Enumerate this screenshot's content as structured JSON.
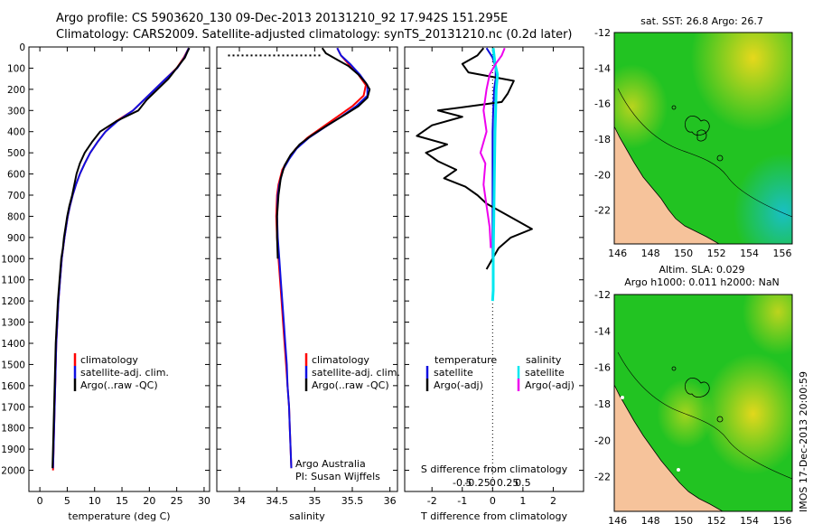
{
  "header": {
    "line1": "Argo profile: CS 5903620_130 09-Dec-2013 20131210_92 17.942S 151.295E",
    "line2": "Climatology: CARS2009. Satellite-adjusted climatology: synTS_20131210.nc (0.2d later)"
  },
  "colors": {
    "climatology": "#ff0000",
    "satellite": "#1010e0",
    "argo": "#000000",
    "sat_salinity": "#00e8f0",
    "argo_salinity": "#ee00ee",
    "land": "#f6c39b",
    "sea_green": "#22c322",
    "sea_yellow": "#e0dc1a",
    "sea_cyan": "#20c8c0"
  },
  "legend_main": {
    "climatology": "climatology",
    "satellite": "satellite-adj. clim.",
    "argo": "Argo(..raw -QC)"
  },
  "legend_diff": {
    "temp_head": "temperature",
    "sal_head": "salinity",
    "temp_sat": "satellite",
    "temp_argo": "Argo(-adj)",
    "sal_sat": "satellite",
    "sal_argo": "Argo(-adj)"
  },
  "credits": {
    "line1": "Argo Australia",
    "line2": "PI: Susan Wijffels"
  },
  "imos_stamp": "IMOS 17-Dec-2013 20:00:59",
  "chart_data": [
    {
      "type": "line",
      "title": "",
      "xlabel": "temperature (deg C)",
      "ylabel": "",
      "xlim": [
        -2,
        31
      ],
      "ylim": [
        0,
        2100
      ],
      "x_ticks": [
        0,
        5,
        10,
        15,
        20,
        25,
        30
      ],
      "y_ticks": [
        0,
        100,
        200,
        300,
        400,
        500,
        600,
        700,
        800,
        900,
        1000,
        1100,
        1200,
        1300,
        1400,
        1500,
        1600,
        1700,
        1800,
        1900,
        2000
      ],
      "series": [
        {
          "name": "climatology",
          "points": [
            [
              27.2,
              5
            ],
            [
              26.3,
              50
            ],
            [
              25,
              100
            ],
            [
              23,
              150
            ],
            [
              21,
              200
            ],
            [
              19,
              250
            ],
            [
              17,
              300
            ],
            [
              14,
              350
            ],
            [
              12,
              400
            ],
            [
              10.5,
              450
            ],
            [
              9.2,
              500
            ],
            [
              8.2,
              550
            ],
            [
              7.3,
              600
            ],
            [
              6.6,
              650
            ],
            [
              6,
              700
            ],
            [
              5.5,
              750
            ],
            [
              5.1,
              800
            ],
            [
              4.8,
              850
            ],
            [
              4.5,
              900
            ],
            [
              4,
              1000
            ],
            [
              3.7,
              1100
            ],
            [
              3.4,
              1200
            ],
            [
              3.2,
              1300
            ],
            [
              3,
              1400
            ],
            [
              2.9,
              1500
            ],
            [
              2.8,
              1600
            ],
            [
              2.7,
              1700
            ],
            [
              2.6,
              1800
            ],
            [
              2.5,
              1900
            ],
            [
              2.4,
              2000
            ]
          ]
        },
        {
          "name": "satellite-adj. clim.",
          "points": [
            [
              27.2,
              5
            ],
            [
              26.4,
              50
            ],
            [
              25.1,
              100
            ],
            [
              23,
              150
            ],
            [
              21,
              200
            ],
            [
              19,
              250
            ],
            [
              17,
              300
            ],
            [
              14.2,
              350
            ],
            [
              12,
              400
            ],
            [
              10.5,
              450
            ],
            [
              9.2,
              500
            ],
            [
              8.2,
              550
            ],
            [
              7.3,
              600
            ],
            [
              6.6,
              650
            ],
            [
              6,
              700
            ],
            [
              5.5,
              750
            ],
            [
              5.1,
              800
            ],
            [
              4.8,
              850
            ],
            [
              4.5,
              900
            ],
            [
              4,
              1000
            ],
            [
              3.7,
              1100
            ],
            [
              3.4,
              1200
            ],
            [
              3.2,
              1300
            ],
            [
              3,
              1400
            ],
            [
              2.9,
              1500
            ],
            [
              2.8,
              1600
            ],
            [
              2.7,
              1700
            ],
            [
              2.6,
              1800
            ],
            [
              2.5,
              1900
            ],
            [
              2.4,
              1990
            ]
          ]
        },
        {
          "name": "Argo(..raw -QC)",
          "points": [
            [
              27.3,
              5
            ],
            [
              27,
              20
            ],
            [
              26.5,
              50
            ],
            [
              25,
              100
            ],
            [
              23.5,
              150
            ],
            [
              21.5,
              200
            ],
            [
              19.5,
              250
            ],
            [
              18,
              300
            ],
            [
              14,
              350
            ],
            [
              11,
              400
            ],
            [
              9.5,
              450
            ],
            [
              8.2,
              500
            ],
            [
              7.3,
              550
            ],
            [
              6.7,
              600
            ],
            [
              6.3,
              650
            ],
            [
              5.9,
              700
            ],
            [
              5.4,
              750
            ],
            [
              5,
              800
            ],
            [
              4.7,
              850
            ],
            [
              4.4,
              900
            ],
            [
              4.2,
              950
            ],
            [
              3.9,
              1000
            ],
            [
              3.6,
              1100
            ],
            [
              3.3,
              1200
            ],
            [
              3.1,
              1300
            ],
            [
              2.9,
              1400
            ],
            [
              2.8,
              1500
            ],
            [
              2.7,
              1600
            ],
            [
              2.6,
              1700
            ],
            [
              2.5,
              1800
            ],
            [
              2.4,
              1900
            ],
            [
              2.3,
              1990
            ]
          ]
        }
      ]
    },
    {
      "type": "line",
      "title": "",
      "xlabel": "salinity",
      "ylabel": "",
      "xlim": [
        33.7,
        36.1
      ],
      "ylim": [
        0,
        2100
      ],
      "x_ticks": [
        34,
        34.5,
        35,
        35.5,
        36
      ],
      "series": [
        {
          "name": "climatology",
          "points": [
            [
              35.3,
              5
            ],
            [
              35.35,
              40
            ],
            [
              35.45,
              80
            ],
            [
              35.58,
              130
            ],
            [
              35.68,
              180
            ],
            [
              35.65,
              230
            ],
            [
              35.5,
              280
            ],
            [
              35.3,
              330
            ],
            [
              35.1,
              380
            ],
            [
              34.9,
              430
            ],
            [
              34.75,
              480
            ],
            [
              34.65,
              530
            ],
            [
              34.57,
              580
            ],
            [
              34.52,
              650
            ],
            [
              34.5,
              700
            ],
            [
              34.49,
              800
            ],
            [
              34.5,
              900
            ],
            [
              34.52,
              1000
            ],
            [
              34.54,
              1100
            ],
            [
              34.56,
              1200
            ],
            [
              34.58,
              1300
            ],
            [
              34.6,
              1400
            ],
            [
              34.62,
              1500
            ],
            [
              34.64,
              1600
            ],
            [
              34.66,
              1700
            ],
            [
              34.67,
              1800
            ],
            [
              34.68,
              1900
            ],
            [
              34.69,
              1990
            ]
          ]
        },
        {
          "name": "satellite-adj. clim.",
          "points": [
            [
              35.3,
              5
            ],
            [
              35.35,
              40
            ],
            [
              35.47,
              80
            ],
            [
              35.6,
              130
            ],
            [
              35.7,
              180
            ],
            [
              35.7,
              230
            ],
            [
              35.55,
              280
            ],
            [
              35.35,
              330
            ],
            [
              35.13,
              380
            ],
            [
              34.92,
              430
            ],
            [
              34.76,
              480
            ],
            [
              34.66,
              530
            ],
            [
              34.58,
              580
            ],
            [
              34.53,
              650
            ],
            [
              34.51,
              700
            ],
            [
              34.5,
              800
            ],
            [
              34.51,
              900
            ],
            [
              34.53,
              1000
            ],
            [
              34.55,
              1100
            ],
            [
              34.57,
              1200
            ],
            [
              34.59,
              1300
            ],
            [
              34.61,
              1400
            ],
            [
              34.63,
              1500
            ],
            [
              34.64,
              1600
            ],
            [
              34.66,
              1700
            ],
            [
              34.67,
              1800
            ],
            [
              34.68,
              1900
            ],
            [
              34.69,
              1990
            ]
          ]
        },
        {
          "name": "Argo(..raw -QC)",
          "points": [
            [
              35.1,
              5
            ],
            [
              35.15,
              30
            ],
            [
              35.3,
              60
            ],
            [
              35.45,
              90
            ],
            [
              35.58,
              130
            ],
            [
              35.68,
              170
            ],
            [
              35.73,
              200
            ],
            [
              35.7,
              240
            ],
            [
              35.58,
              280
            ],
            [
              35.4,
              320
            ],
            [
              35.17,
              370
            ],
            [
              34.95,
              420
            ],
            [
              34.8,
              460
            ],
            [
              34.68,
              510
            ],
            [
              34.6,
              560
            ],
            [
              34.55,
              620
            ],
            [
              34.52,
              700
            ],
            [
              34.5,
              800
            ],
            [
              34.5,
              900
            ],
            [
              34.51,
              1000
            ]
          ]
        },
        {
          "name": "Argo surface values (dotted)",
          "points": [
            [
              33.85,
              40
            ],
            [
              35.1,
              40
            ]
          ]
        }
      ]
    },
    {
      "type": "line",
      "title": "",
      "xlabel": "T difference from climatology",
      "x2label": "S difference from climatology",
      "xlim": [
        -2.9,
        3
      ],
      "ylim": [
        0,
        2100
      ],
      "x_ticks": [
        -2,
        -1,
        0,
        1,
        2
      ],
      "x2_ticks": [
        -0.5,
        -0.25,
        0,
        0.25,
        0.5
      ],
      "series": [
        {
          "name": "temperature satellite",
          "points": [
            [
              -0.2,
              5
            ],
            [
              0,
              50
            ],
            [
              0.1,
              100
            ],
            [
              0.1,
              150
            ],
            [
              0.05,
              200
            ],
            [
              0.02,
              300
            ],
            [
              0,
              400
            ],
            [
              0,
              600
            ],
            [
              0,
              800
            ],
            [
              0,
              1000
            ]
          ]
        },
        {
          "name": "temperature Argo(-adj)",
          "points": [
            [
              -0.3,
              5
            ],
            [
              -0.5,
              40
            ],
            [
              -1,
              80
            ],
            [
              -0.8,
              120
            ],
            [
              0.7,
              160
            ],
            [
              0.5,
              220
            ],
            [
              0.3,
              260
            ],
            [
              -1.8,
              300
            ],
            [
              -1,
              330
            ],
            [
              -2,
              370
            ],
            [
              -2.5,
              420
            ],
            [
              -1.5,
              460
            ],
            [
              -2.2,
              500
            ],
            [
              -1.8,
              540
            ],
            [
              -1.2,
              580
            ],
            [
              -1.6,
              620
            ],
            [
              -0.9,
              660
            ],
            [
              -0.5,
              700
            ],
            [
              -0.2,
              740
            ],
            [
              0.3,
              780
            ],
            [
              0.8,
              820
            ],
            [
              1.3,
              860
            ],
            [
              0.6,
              900
            ],
            [
              0.2,
              950
            ],
            [
              0,
              1000
            ],
            [
              -0.2,
              1050
            ]
          ]
        },
        {
          "name": "salinity satellite",
          "points": [
            [
              0.01,
              5
            ],
            [
              0.04,
              80
            ],
            [
              0.08,
              130
            ],
            [
              0.06,
              200
            ],
            [
              0.05,
              300
            ],
            [
              0.04,
              400
            ],
            [
              0.03,
              600
            ],
            [
              0.02,
              800
            ],
            [
              0.01,
              1000
            ],
            [
              0.01,
              1150
            ],
            [
              0.0,
              1200
            ]
          ]
        },
        {
          "name": "salinity Argo(-adj)",
          "points": [
            [
              0.2,
              5
            ],
            [
              0.15,
              40
            ],
            [
              0.05,
              80
            ],
            [
              -0.05,
              130
            ],
            [
              -0.1,
              200
            ],
            [
              -0.15,
              300
            ],
            [
              -0.1,
              400
            ],
            [
              -0.2,
              500
            ],
            [
              -0.12,
              550
            ],
            [
              -0.15,
              650
            ],
            [
              -0.1,
              750
            ],
            [
              -0.05,
              850
            ],
            [
              -0.03,
              950
            ]
          ]
        }
      ]
    },
    {
      "type": "heatmap",
      "title": "sat. SST: 26.8 Argo: 26.7",
      "xlim": [
        145.8,
        156.6
      ],
      "ylim": [
        -23.9,
        -12
      ],
      "x_ticks": [
        146,
        148,
        150,
        152,
        154,
        156
      ],
      "y_ticks": [
        -12,
        -14,
        -16,
        -18,
        -20,
        -22
      ]
    },
    {
      "type": "heatmap",
      "title": "Altim. SLA: 0.029",
      "subtitle": "Argo h1000: 0.011 h2000: NaN",
      "xlim": [
        145.8,
        156.6
      ],
      "ylim": [
        -23.9,
        -12
      ],
      "x_ticks": [
        146,
        148,
        150,
        152,
        154,
        156
      ],
      "y_ticks": [
        -12,
        -14,
        -16,
        -18,
        -20,
        -22
      ]
    }
  ]
}
